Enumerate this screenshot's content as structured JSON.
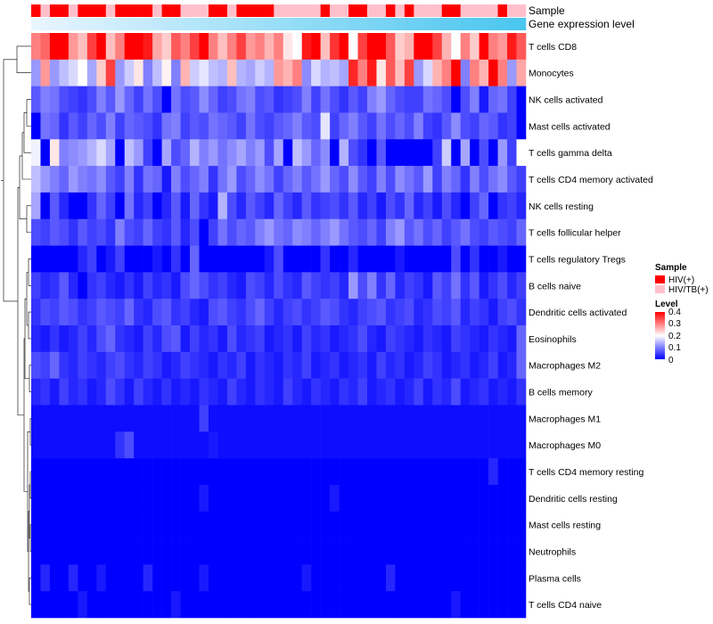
{
  "chart_data": {
    "type": "heatmap",
    "title": "",
    "annotation_tracks": {
      "sample_label": "Sample",
      "gene_label": "Gene expression level"
    },
    "samples": [
      "HIV(+)",
      "HIV/TB(+)",
      "HIV(+)",
      "HIV(+)",
      "HIV/TB(+)",
      "HIV(+)",
      "HIV(+)",
      "HIV(+)",
      "HIV/TB(+)",
      "HIV(+)",
      "HIV(+)",
      "HIV(+)",
      "HIV(+)",
      "HIV/TB(+)",
      "HIV(+)",
      "HIV(+)",
      "HIV/TB(+)",
      "HIV/TB(+)",
      "HIV/TB(+)",
      "HIV(+)",
      "HIV(+)",
      "HIV/TB(+)",
      "HIV(+)",
      "HIV(+)",
      "HIV(+)",
      "HIV(+)",
      "HIV/TB(+)",
      "HIV/TB(+)",
      "HIV/TB(+)",
      "HIV/TB(+)",
      "HIV/TB(+)",
      "HIV(+)",
      "HIV/TB(+)",
      "HIV/TB(+)",
      "HIV(+)",
      "HIV(+)",
      "HIV/TB(+)",
      "HIV/TB(+)",
      "HIV(+)",
      "HIV/TB(+)",
      "HIV(+)",
      "HIV/TB(+)",
      "HIV/TB(+)",
      "HIV/TB(+)",
      "HIV(+)",
      "HIV(+)",
      "HIV/TB(+)",
      "HIV/TB(+)",
      "HIV/TB(+)",
      "HIV/TB(+)",
      "HIV(+)",
      "HIV/TB(+)",
      "HIV/TB(+)"
    ],
    "row_labels": [
      "T cells CD8",
      "Monocytes",
      "NK cells activated",
      "Mast cells activated",
      "T cells gamma delta",
      "T cells CD4 memory activated",
      "NK cells resting",
      "T cells follicular helper",
      "T cells regulatory  Tregs",
      "B cells naive",
      "Dendritic cells activated",
      "Eosinophils",
      "Macrophages M2",
      "B cells memory",
      "Macrophages M1",
      "Macrophages M0",
      "T cells CD4 memory resting",
      "Dendritic cells resting",
      "Mast cells resting",
      "Neutrophils",
      "Plasma cells",
      "T cells CD4 naive"
    ],
    "matrix": [
      [
        0.3,
        0.32,
        0.4,
        0.4,
        0.28,
        0.25,
        0.35,
        0.4,
        0.25,
        0.3,
        0.4,
        0.4,
        0.38,
        0.27,
        0.24,
        0.33,
        0.3,
        0.35,
        0.4,
        0.3,
        0.25,
        0.3,
        0.35,
        0.28,
        0.3,
        0.26,
        0.3,
        0.22,
        0.2,
        0.38,
        0.4,
        0.25,
        0.36,
        0.4,
        0.2,
        0.35,
        0.4,
        0.4,
        0.33,
        0.24,
        0.26,
        0.4,
        0.4,
        0.35,
        0.26,
        0.2,
        0.3,
        0.24,
        0.4,
        0.3,
        0.28,
        0.38,
        0.33
      ],
      [
        0.12,
        0.28,
        0.12,
        0.15,
        0.17,
        0.2,
        0.13,
        0.24,
        0.35,
        0.12,
        0.16,
        0.22,
        0.1,
        0.15,
        0.21,
        0.1,
        0.26,
        0.16,
        0.18,
        0.15,
        0.14,
        0.25,
        0.14,
        0.13,
        0.16,
        0.14,
        0.28,
        0.26,
        0.3,
        0.11,
        0.17,
        0.14,
        0.15,
        0.13,
        0.37,
        0.3,
        0.38,
        0.22,
        0.33,
        0.25,
        0.35,
        0.12,
        0.17,
        0.26,
        0.3,
        0.4,
        0.1,
        0.3,
        0.26,
        0.4,
        0.3,
        0.12,
        0.27
      ],
      [
        0.07,
        0.1,
        0.09,
        0.06,
        0.05,
        0.04,
        0.06,
        0.1,
        0.07,
        0.12,
        0.08,
        0.05,
        0.09,
        0.06,
        0.0,
        0.09,
        0.06,
        0.07,
        0.11,
        0.08,
        0.05,
        0.06,
        0.09,
        0.1,
        0.06,
        0.07,
        0.04,
        0.05,
        0.06,
        0.1,
        0.05,
        0.09,
        0.06,
        0.04,
        0.07,
        0.05,
        0.1,
        0.12,
        0.08,
        0.06,
        0.05,
        0.05,
        0.09,
        0.08,
        0.06,
        0.0,
        0.06,
        0.1,
        0.02,
        0.08,
        0.09,
        0.05,
        0.0
      ],
      [
        0.0,
        0.09,
        0.08,
        0.04,
        0.07,
        0.05,
        0.08,
        0.06,
        0.1,
        0.05,
        0.08,
        0.07,
        0.06,
        0.04,
        0.09,
        0.1,
        0.05,
        0.07,
        0.06,
        0.09,
        0.08,
        0.07,
        0.05,
        0.09,
        0.06,
        0.05,
        0.07,
        0.08,
        0.1,
        0.07,
        0.06,
        0.18,
        0.05,
        0.08,
        0.1,
        0.07,
        0.05,
        0.09,
        0.06,
        0.08,
        0.06,
        0.1,
        0.05,
        0.04,
        0.07,
        0.11,
        0.06,
        0.05,
        0.08,
        0.07,
        0.04,
        0.05,
        0.0
      ],
      [
        0.19,
        0.0,
        0.22,
        0.1,
        0.11,
        0.12,
        0.14,
        0.17,
        0.13,
        0.0,
        0.15,
        0.12,
        0.05,
        0.0,
        0.13,
        0.06,
        0.08,
        0.14,
        0.1,
        0.12,
        0.09,
        0.11,
        0.13,
        0.1,
        0.12,
        0.06,
        0.13,
        0.0,
        0.15,
        0.12,
        0.08,
        0.11,
        0.0,
        0.14,
        0.06,
        0.04,
        0.0,
        0.07,
        0.0,
        0.0,
        0.0,
        0.0,
        0.0,
        0.05,
        0.16,
        0.0,
        0.13,
        0.0,
        0.06,
        0.0,
        0.12,
        0.05,
        0.2
      ],
      [
        0.15,
        0.12,
        0.1,
        0.08,
        0.12,
        0.1,
        0.09,
        0.11,
        0.07,
        0.05,
        0.1,
        0.04,
        0.09,
        0.08,
        0.02,
        0.1,
        0.06,
        0.08,
        0.1,
        0.04,
        0.09,
        0.12,
        0.06,
        0.08,
        0.11,
        0.09,
        0.05,
        0.08,
        0.1,
        0.07,
        0.09,
        0.12,
        0.08,
        0.06,
        0.11,
        0.07,
        0.05,
        0.1,
        0.06,
        0.11,
        0.09,
        0.07,
        0.12,
        0.05,
        0.1,
        0.08,
        0.04,
        0.1,
        0.06,
        0.09,
        0.11,
        0.07,
        0.05
      ],
      [
        0.13,
        0.0,
        0.07,
        0.03,
        0.0,
        0.0,
        0.04,
        0.08,
        0.05,
        0.0,
        0.09,
        0.03,
        0.05,
        0.0,
        0.03,
        0.07,
        0.02,
        0.08,
        0.04,
        0.02,
        0.14,
        0.06,
        0.03,
        0.07,
        0.05,
        0.03,
        0.08,
        0.05,
        0.03,
        0.07,
        0.04,
        0.05,
        0.06,
        0.04,
        0.07,
        0.03,
        0.05,
        0.02,
        0.06,
        0.04,
        0.08,
        0.03,
        0.05,
        0.02,
        0.06,
        0.03,
        0.0,
        0.05,
        0.08,
        0.0,
        0.04,
        0.05,
        0.03
      ],
      [
        0.06,
        0.05,
        0.07,
        0.06,
        0.04,
        0.07,
        0.05,
        0.06,
        0.04,
        0.1,
        0.06,
        0.05,
        0.08,
        0.05,
        0.04,
        0.07,
        0.03,
        0.06,
        0.0,
        0.05,
        0.09,
        0.06,
        0.08,
        0.07,
        0.1,
        0.12,
        0.09,
        0.08,
        0.11,
        0.1,
        0.08,
        0.1,
        0.12,
        0.09,
        0.07,
        0.06,
        0.08,
        0.05,
        0.1,
        0.12,
        0.07,
        0.09,
        0.06,
        0.08,
        0.05,
        0.07,
        0.09,
        0.06,
        0.05,
        0.07,
        0.06,
        0.05,
        0.08
      ],
      [
        0.0,
        0.0,
        0.0,
        0.0,
        0.0,
        0.03,
        0.05,
        0.0,
        0.02,
        0.05,
        0.0,
        0.0,
        0.0,
        0.02,
        0.0,
        0.04,
        0.0,
        0.08,
        0.0,
        0.0,
        0.0,
        0.0,
        0.0,
        0.0,
        0.0,
        0.02,
        0.06,
        0.0,
        0.0,
        0.0,
        0.0,
        0.04,
        0.0,
        0.0,
        0.03,
        0.0,
        0.0,
        0.0,
        0.0,
        0.02,
        0.0,
        0.0,
        0.0,
        0.0,
        0.0,
        0.06,
        0.0,
        0.04,
        0.0,
        0.0,
        0.02,
        0.0,
        0.0
      ],
      [
        0.05,
        0.03,
        0.04,
        0.07,
        0.03,
        0.0,
        0.04,
        0.05,
        0.03,
        0.02,
        0.04,
        0.02,
        0.05,
        0.03,
        0.04,
        0.02,
        0.06,
        0.08,
        0.06,
        0.04,
        0.05,
        0.03,
        0.02,
        0.06,
        0.05,
        0.03,
        0.06,
        0.04,
        0.03,
        0.07,
        0.05,
        0.04,
        0.05,
        0.03,
        0.12,
        0.06,
        0.1,
        0.04,
        0.08,
        0.03,
        0.05,
        0.04,
        0.02,
        0.07,
        0.05,
        0.09,
        0.04,
        0.07,
        0.02,
        0.04,
        0.06,
        0.03,
        0.05
      ],
      [
        0.04,
        0.06,
        0.05,
        0.07,
        0.06,
        0.04,
        0.05,
        0.07,
        0.06,
        0.05,
        0.08,
        0.04,
        0.03,
        0.06,
        0.07,
        0.04,
        0.05,
        0.03,
        0.02,
        0.06,
        0.07,
        0.05,
        0.04,
        0.06,
        0.08,
        0.05,
        0.03,
        0.05,
        0.06,
        0.04,
        0.05,
        0.07,
        0.06,
        0.04,
        0.03,
        0.05,
        0.06,
        0.07,
        0.04,
        0.05,
        0.06,
        0.03,
        0.04,
        0.06,
        0.05,
        0.07,
        0.03,
        0.05,
        0.04,
        0.02,
        0.05,
        0.06,
        0.04
      ],
      [
        0.03,
        0.02,
        0.04,
        0.02,
        0.03,
        0.05,
        0.03,
        0.06,
        0.08,
        0.04,
        0.03,
        0.02,
        0.05,
        0.03,
        0.06,
        0.07,
        0.02,
        0.05,
        0.03,
        0.04,
        0.02,
        0.06,
        0.03,
        0.04,
        0.05,
        0.02,
        0.03,
        0.04,
        0.02,
        0.05,
        0.03,
        0.04,
        0.02,
        0.03,
        0.04,
        0.06,
        0.03,
        0.02,
        0.05,
        0.04,
        0.03,
        0.02,
        0.04,
        0.03,
        0.02,
        0.05,
        0.04,
        0.03,
        0.02,
        0.04,
        0.03,
        0.02,
        0.08
      ],
      [
        0.06,
        0.05,
        0.08,
        0.04,
        0.03,
        0.05,
        0.04,
        0.03,
        0.05,
        0.06,
        0.04,
        0.03,
        0.05,
        0.04,
        0.02,
        0.03,
        0.05,
        0.04,
        0.03,
        0.02,
        0.04,
        0.03,
        0.05,
        0.02,
        0.04,
        0.03,
        0.02,
        0.04,
        0.03,
        0.05,
        0.02,
        0.03,
        0.04,
        0.02,
        0.03,
        0.04,
        0.02,
        0.05,
        0.03,
        0.04,
        0.02,
        0.03,
        0.05,
        0.04,
        0.02,
        0.03,
        0.04,
        0.02,
        0.03,
        0.05,
        0.02,
        0.03,
        0.08
      ],
      [
        0.03,
        0.04,
        0.02,
        0.05,
        0.03,
        0.04,
        0.02,
        0.03,
        0.06,
        0.04,
        0.02,
        0.05,
        0.03,
        0.02,
        0.04,
        0.02,
        0.03,
        0.02,
        0.04,
        0.03,
        0.02,
        0.05,
        0.03,
        0.02,
        0.04,
        0.03,
        0.02,
        0.05,
        0.03,
        0.02,
        0.04,
        0.03,
        0.02,
        0.04,
        0.03,
        0.05,
        0.02,
        0.03,
        0.04,
        0.02,
        0.03,
        0.05,
        0.02,
        0.04,
        0.03,
        0.06,
        0.02,
        0.03,
        0.04,
        0.02,
        0.03,
        0.02,
        0.04
      ],
      [
        0.01,
        0.01,
        0.01,
        0.01,
        0.01,
        0.01,
        0.01,
        0.01,
        0.01,
        0.01,
        0.01,
        0.01,
        0.01,
        0.01,
        0.01,
        0.01,
        0.01,
        0.01,
        0.05,
        0.01,
        0.01,
        0.01,
        0.01,
        0.01,
        0.01,
        0.01,
        0.01,
        0.01,
        0.01,
        0.01,
        0.01,
        0.01,
        0.01,
        0.01,
        0.01,
        0.01,
        0.01,
        0.01,
        0.01,
        0.01,
        0.01,
        0.01,
        0.01,
        0.01,
        0.01,
        0.01,
        0.01,
        0.01,
        0.01,
        0.01,
        0.01,
        0.01,
        0.01
      ],
      [
        0.01,
        0.01,
        0.01,
        0.01,
        0.01,
        0.01,
        0.01,
        0.01,
        0.01,
        0.04,
        0.06,
        0.01,
        0.01,
        0.01,
        0.01,
        0.01,
        0.01,
        0.01,
        0.01,
        0.02,
        0.01,
        0.01,
        0.01,
        0.01,
        0.01,
        0.01,
        0.01,
        0.01,
        0.01,
        0.01,
        0.01,
        0.01,
        0.01,
        0.01,
        0.01,
        0.01,
        0.01,
        0.01,
        0.01,
        0.01,
        0.01,
        0.01,
        0.01,
        0.01,
        0.01,
        0.01,
        0.01,
        0.01,
        0.01,
        0.01,
        0.01,
        0.01,
        0.01
      ],
      [
        0.0,
        0.0,
        0.0,
        0.0,
        0.0,
        0.0,
        0.0,
        0.0,
        0.0,
        0.0,
        0.0,
        0.0,
        0.0,
        0.0,
        0.0,
        0.0,
        0.0,
        0.0,
        0.0,
        0.0,
        0.0,
        0.0,
        0.0,
        0.0,
        0.0,
        0.0,
        0.0,
        0.0,
        0.0,
        0.0,
        0.0,
        0.0,
        0.0,
        0.0,
        0.0,
        0.0,
        0.0,
        0.0,
        0.0,
        0.0,
        0.0,
        0.0,
        0.0,
        0.0,
        0.0,
        0.0,
        0.0,
        0.0,
        0.0,
        0.03,
        0.0,
        0.0,
        0.0
      ],
      [
        0.0,
        0.0,
        0.0,
        0.0,
        0.0,
        0.0,
        0.0,
        0.0,
        0.0,
        0.0,
        0.0,
        0.0,
        0.0,
        0.0,
        0.0,
        0.0,
        0.0,
        0.0,
        0.02,
        0.0,
        0.0,
        0.0,
        0.0,
        0.0,
        0.0,
        0.0,
        0.0,
        0.0,
        0.0,
        0.0,
        0.0,
        0.0,
        0.02,
        0.0,
        0.0,
        0.0,
        0.0,
        0.0,
        0.0,
        0.0,
        0.0,
        0.0,
        0.0,
        0.0,
        0.0,
        0.0,
        0.0,
        0.0,
        0.0,
        0.0,
        0.0,
        0.0,
        0.0
      ],
      [
        0.0,
        0.0,
        0.0,
        0.0,
        0.0,
        0.0,
        0.0,
        0.0,
        0.0,
        0.0,
        0.0,
        0.0,
        0.0,
        0.0,
        0.0,
        0.0,
        0.0,
        0.0,
        0.0,
        0.0,
        0.0,
        0.0,
        0.0,
        0.0,
        0.0,
        0.0,
        0.0,
        0.0,
        0.0,
        0.0,
        0.0,
        0.0,
        0.0,
        0.0,
        0.0,
        0.0,
        0.0,
        0.0,
        0.0,
        0.0,
        0.0,
        0.0,
        0.0,
        0.0,
        0.0,
        0.0,
        0.0,
        0.0,
        0.0,
        0.0,
        0.0,
        0.0,
        0.0
      ],
      [
        0.0,
        0.0,
        0.0,
        0.0,
        0.0,
        0.0,
        0.0,
        0.0,
        0.0,
        0.0,
        0.0,
        0.0,
        0.0,
        0.0,
        0.0,
        0.0,
        0.0,
        0.0,
        0.0,
        0.0,
        0.0,
        0.0,
        0.0,
        0.0,
        0.0,
        0.0,
        0.0,
        0.0,
        0.0,
        0.0,
        0.0,
        0.0,
        0.0,
        0.0,
        0.0,
        0.0,
        0.0,
        0.0,
        0.0,
        0.0,
        0.0,
        0.0,
        0.0,
        0.0,
        0.0,
        0.0,
        0.0,
        0.0,
        0.0,
        0.0,
        0.0,
        0.0,
        0.0
      ],
      [
        0.0,
        0.03,
        0.0,
        0.0,
        0.03,
        0.0,
        0.0,
        0.02,
        0.0,
        0.0,
        0.0,
        0.0,
        0.03,
        0.0,
        0.0,
        0.0,
        0.0,
        0.0,
        0.02,
        0.0,
        0.0,
        0.0,
        0.0,
        0.0,
        0.0,
        0.0,
        0.0,
        0.0,
        0.0,
        0.02,
        0.0,
        0.0,
        0.0,
        0.0,
        0.0,
        0.0,
        0.0,
        0.0,
        0.03,
        0.0,
        0.0,
        0.0,
        0.0,
        0.0,
        0.0,
        0.0,
        0.0,
        0.0,
        0.0,
        0.0,
        0.0,
        0.0,
        0.0
      ],
      [
        0.0,
        0.0,
        0.0,
        0.0,
        0.0,
        0.02,
        0.0,
        0.0,
        0.0,
        0.0,
        0.0,
        0.0,
        0.0,
        0.0,
        0.0,
        0.02,
        0.0,
        0.0,
        0.0,
        0.0,
        0.0,
        0.0,
        0.0,
        0.0,
        0.0,
        0.0,
        0.0,
        0.0,
        0.0,
        0.0,
        0.0,
        0.0,
        0.0,
        0.0,
        0.0,
        0.0,
        0.0,
        0.0,
        0.0,
        0.0,
        0.0,
        0.0,
        0.0,
        0.0,
        0.0,
        0.02,
        0.0,
        0.0,
        0.0,
        0.0,
        0.0,
        0.0,
        0.0
      ]
    ],
    "color_scale": {
      "min": 0,
      "max": 0.4,
      "colors": [
        "#0000ff",
        "#ffffff",
        "#ff0000"
      ]
    },
    "sample_colors": {
      "HIV(+)": "#ff0000",
      "HIV/TB(+)": "#ffc0cb"
    },
    "gene_colors": [
      "#e8f5ff",
      "#4ac6ef"
    ],
    "legend": {
      "sample_title": "Sample",
      "sample_items": [
        "HIV(+)",
        "HIV/TB(+)"
      ],
      "level_title": "Level",
      "level_ticks": [
        "0.4",
        "0.3",
        "0.2",
        "0.1",
        "0"
      ]
    }
  }
}
